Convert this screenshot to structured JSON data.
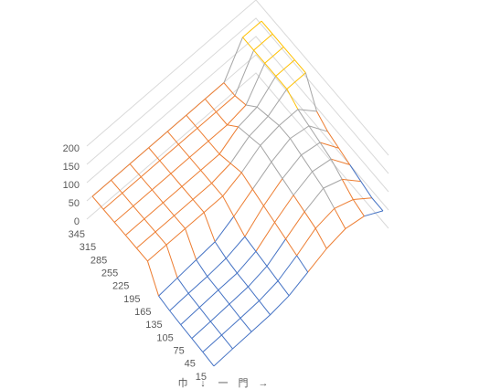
{
  "chart_data": {
    "type": "surface",
    "wireframe": true,
    "zlim": [
      0,
      200
    ],
    "zticks": [
      0,
      50,
      100,
      150,
      200
    ],
    "depth_categories": [
      "15",
      "45",
      "75",
      "105",
      "135",
      "165",
      "195",
      "225",
      "255",
      "285",
      "315",
      "345"
    ],
    "x_axis_labels": [
      "巾",
      "↓",
      "一",
      "門",
      "→"
    ],
    "band_colors": [
      "#4472c4",
      "#ed7d31",
      "#a5a5a5",
      "#ffc000"
    ],
    "wall_color": "#d9d9d9",
    "z": [
      [
        5,
        8,
        10,
        12,
        20,
        40,
        60,
        70,
        60,
        30
      ],
      [
        8,
        10,
        12,
        15,
        25,
        50,
        80,
        90,
        70,
        30
      ],
      [
        10,
        12,
        15,
        18,
        30,
        60,
        90,
        110,
        90,
        40
      ],
      [
        12,
        15,
        18,
        20,
        35,
        70,
        100,
        120,
        110,
        50
      ],
      [
        15,
        18,
        20,
        25,
        40,
        80,
        110,
        130,
        120,
        60
      ],
      [
        20,
        25,
        30,
        35,
        60,
        90,
        120,
        140,
        130,
        70
      ],
      [
        80,
        80,
        80,
        80,
        80,
        100,
        130,
        140,
        140,
        90
      ],
      [
        80,
        80,
        80,
        80,
        80,
        90,
        120,
        130,
        160,
        160
      ],
      [
        80,
        80,
        80,
        80,
        80,
        80,
        110,
        120,
        160,
        160
      ],
      [
        80,
        80,
        80,
        80,
        80,
        80,
        80,
        90,
        160,
        160
      ],
      [
        80,
        80,
        80,
        80,
        80,
        80,
        80,
        80,
        160,
        160
      ],
      [
        80,
        80,
        80,
        80,
        80,
        80,
        80,
        80,
        160,
        160
      ]
    ]
  }
}
